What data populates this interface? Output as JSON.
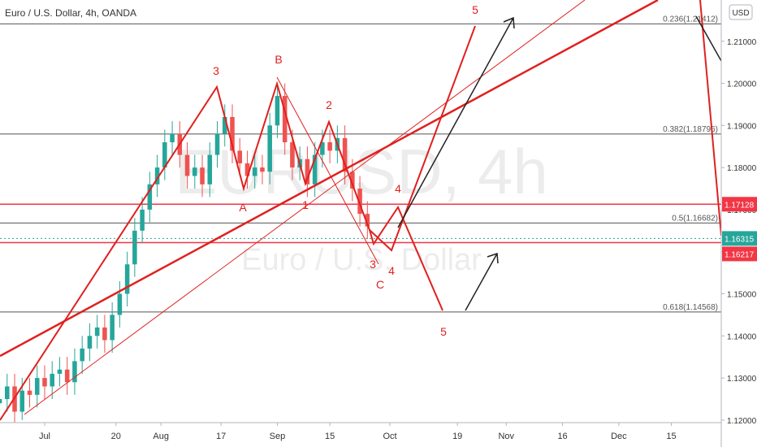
{
  "chart_data": {
    "type": "candlestick",
    "header": "Euro / U.S. Dollar, 4h, OANDA",
    "currency": "USD",
    "watermark": "EURUSD, 4h",
    "watermark_subtitle": "Euro / U.S. Dollar",
    "up_color": "#26a69a",
    "down_color": "#ef5350",
    "grid": false,
    "xlim": [
      -11.9,
      180.3
    ],
    "ylim": [
      1.1194,
      1.2198
    ],
    "xticks": [
      {
        "value": 0,
        "label": "Jul"
      },
      {
        "value": 19,
        "label": "20"
      },
      {
        "value": 31,
        "label": "Aug"
      },
      {
        "value": 47,
        "label": "17"
      },
      {
        "value": 62,
        "label": "Sep"
      },
      {
        "value": 76,
        "label": "15"
      },
      {
        "value": 92,
        "label": "Oct"
      },
      {
        "value": 110,
        "label": "19"
      },
      {
        "value": 123,
        "label": "Nov"
      },
      {
        "value": 138,
        "label": "16"
      },
      {
        "value": 153,
        "label": "Dec"
      },
      {
        "value": 167,
        "label": "15"
      }
    ],
    "yticks": [
      {
        "value": 1.12,
        "label": "1.12000"
      },
      {
        "value": 1.13,
        "label": "1.13000"
      },
      {
        "value": 1.14,
        "label": "1.14000"
      },
      {
        "value": 1.15,
        "label": "1.15000"
      },
      {
        "value": 1.16,
        "label": "1.16000"
      },
      {
        "value": 1.17,
        "label": "1.17000"
      },
      {
        "value": 1.18,
        "label": "1.18000"
      },
      {
        "value": 1.19,
        "label": "1.19000"
      },
      {
        "value": 1.2,
        "label": "1.20000"
      },
      {
        "value": 1.21,
        "label": "1.21000"
      }
    ],
    "x": [
      -12,
      -10,
      -8,
      -6,
      -4,
      -2,
      0,
      2,
      4,
      6,
      8,
      10,
      12,
      14,
      16,
      18,
      20,
      22,
      24,
      26,
      28,
      30,
      32,
      34,
      36,
      38,
      40,
      42,
      44,
      46,
      48,
      50,
      52,
      54,
      56,
      58,
      60,
      62,
      64,
      66,
      68,
      70,
      72,
      74,
      76,
      78,
      80,
      82,
      84,
      86
    ],
    "open": [
      1.124,
      1.125,
      1.128,
      1.122,
      1.127,
      1.126,
      1.13,
      1.128,
      1.131,
      1.132,
      1.129,
      1.134,
      1.137,
      1.14,
      1.142,
      1.139,
      1.145,
      1.15,
      1.157,
      1.165,
      1.17,
      1.176,
      1.18,
      1.186,
      1.188,
      1.183,
      1.178,
      1.18,
      1.176,
      1.183,
      1.188,
      1.192,
      1.184,
      1.181,
      1.178,
      1.18,
      1.179,
      1.19,
      1.197,
      1.186,
      1.18,
      1.182,
      1.176,
      1.183,
      1.186,
      1.184,
      1.187,
      1.179,
      1.175,
      1.169
    ],
    "high": [
      1.128,
      1.131,
      1.131,
      1.13,
      1.13,
      1.133,
      1.133,
      1.134,
      1.135,
      1.135,
      1.137,
      1.14,
      1.143,
      1.145,
      1.145,
      1.148,
      1.153,
      1.16,
      1.168,
      1.173,
      1.179,
      1.183,
      1.189,
      1.191,
      1.191,
      1.186,
      1.183,
      1.183,
      1.186,
      1.191,
      1.195,
      1.195,
      1.187,
      1.184,
      1.183,
      1.183,
      1.193,
      1.2,
      1.2,
      1.189,
      1.185,
      1.185,
      1.186,
      1.189,
      1.189,
      1.19,
      1.19,
      1.182,
      1.178,
      1.172
    ],
    "low": [
      1.121,
      1.122,
      1.119,
      1.12,
      1.123,
      1.123,
      1.125,
      1.125,
      1.128,
      1.126,
      1.126,
      1.131,
      1.134,
      1.137,
      1.136,
      1.136,
      1.142,
      1.147,
      1.154,
      1.162,
      1.167,
      1.173,
      1.177,
      1.183,
      1.18,
      1.175,
      1.175,
      1.173,
      1.173,
      1.18,
      1.185,
      1.181,
      1.178,
      1.175,
      1.175,
      1.176,
      1.176,
      1.187,
      1.183,
      1.177,
      1.177,
      1.173,
      1.173,
      1.18,
      1.181,
      1.181,
      1.176,
      1.172,
      1.166,
      1.163
    ],
    "close": [
      1.125,
      1.128,
      1.122,
      1.127,
      1.126,
      1.13,
      1.128,
      1.131,
      1.132,
      1.129,
      1.134,
      1.137,
      1.14,
      1.142,
      1.139,
      1.145,
      1.15,
      1.157,
      1.165,
      1.17,
      1.176,
      1.18,
      1.186,
      1.188,
      1.183,
      1.178,
      1.18,
      1.176,
      1.183,
      1.188,
      1.192,
      1.184,
      1.181,
      1.178,
      1.18,
      1.179,
      1.19,
      1.197,
      1.186,
      1.18,
      1.182,
      1.176,
      1.183,
      1.186,
      1.184,
      1.187,
      1.179,
      1.175,
      1.169,
      1.166
    ],
    "fib_levels": [
      {
        "value": 1.21412,
        "label": "0.236(1.21412)"
      },
      {
        "value": 1.18796,
        "label": "0.382(1.18796)"
      },
      {
        "value": 1.16682,
        "label": "0.5(1.16682)"
      },
      {
        "value": 1.14568,
        "label": "0.618(1.14568)"
      }
    ],
    "price_lines": [
      {
        "value": 1.17128,
        "label": "1.17128",
        "color": "#f23645"
      },
      {
        "value": 1.16315,
        "label": "1.16315",
        "color": "#26a69a"
      },
      {
        "value": 1.16217,
        "label": "1.16217",
        "color": "#f23645"
      }
    ],
    "wave_labels": [
      "3",
      "B",
      "2",
      "A",
      "1",
      "4",
      "3",
      "4",
      "C",
      "5",
      "5"
    ]
  }
}
